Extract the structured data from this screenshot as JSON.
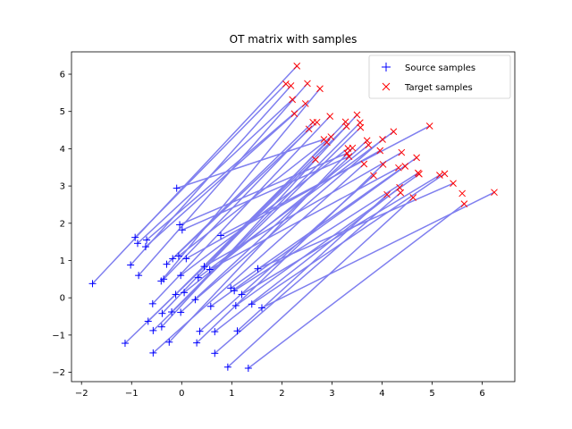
{
  "chart_data": {
    "type": "scatter",
    "title": "OT matrix with samples",
    "xlabel": "",
    "ylabel": "",
    "xlim": [
      -2.2,
      6.65
    ],
    "ylim": [
      -2.25,
      6.6
    ],
    "xticks": [
      -2,
      -1,
      0,
      1,
      2,
      3,
      4,
      5,
      6
    ],
    "yticks": [
      -2,
      -1,
      0,
      1,
      2,
      3,
      4,
      5,
      6
    ],
    "grid": false,
    "legend_position": "top-right",
    "colors": {
      "source": "#0000ff",
      "target": "#ff0000",
      "lines": "#7f7fef"
    },
    "series": [
      {
        "name": "Source samples",
        "marker": "+",
        "points": [
          [
            -1.78,
            0.38
          ],
          [
            -1.13,
            -1.22
          ],
          [
            -1.02,
            0.88
          ],
          [
            -0.93,
            1.62
          ],
          [
            -0.88,
            1.46
          ],
          [
            -0.86,
            0.6
          ],
          [
            -0.72,
            1.37
          ],
          [
            -0.7,
            1.55
          ],
          [
            -0.67,
            -0.63
          ],
          [
            -0.58,
            -0.16
          ],
          [
            -0.57,
            -0.88
          ],
          [
            -0.57,
            -1.48
          ],
          [
            -0.41,
            0.45
          ],
          [
            -0.4,
            -0.78
          ],
          [
            -0.39,
            -0.42
          ],
          [
            -0.36,
            0.5
          ],
          [
            -0.3,
            0.9
          ],
          [
            -0.25,
            -1.19
          ],
          [
            -0.2,
            -0.38
          ],
          [
            -0.18,
            1.05
          ],
          [
            -0.12,
            0.09
          ],
          [
            -0.1,
            2.94
          ],
          [
            -0.06,
            1.12
          ],
          [
            -0.04,
            1.96
          ],
          [
            -0.02,
            0.6
          ],
          [
            -0.02,
            -0.39
          ],
          [
            0.01,
            1.82
          ],
          [
            0.05,
            0.14
          ],
          [
            0.09,
            1.05
          ],
          [
            0.27,
            -0.05
          ],
          [
            0.3,
            -1.21
          ],
          [
            0.33,
            0.54
          ],
          [
            0.36,
            -0.9
          ],
          [
            0.45,
            0.84
          ],
          [
            0.56,
            0.76
          ],
          [
            0.58,
            -0.23
          ],
          [
            0.66,
            -0.91
          ],
          [
            0.66,
            -1.49
          ],
          [
            0.78,
            1.67
          ],
          [
            0.92,
            -1.86
          ],
          [
            0.98,
            0.26
          ],
          [
            1.05,
            0.19
          ],
          [
            1.08,
            -0.21
          ],
          [
            1.11,
            -0.89
          ],
          [
            1.2,
            0.09
          ],
          [
            1.33,
            -1.89
          ],
          [
            1.4,
            -0.17
          ],
          [
            1.52,
            0.78
          ],
          [
            1.6,
            -0.27
          ]
        ]
      },
      {
        "name": "Target samples",
        "marker": "x",
        "points": [
          [
            2.08,
            5.74
          ],
          [
            2.18,
            5.69
          ],
          [
            2.21,
            5.32
          ],
          [
            2.25,
            4.94
          ],
          [
            2.3,
            6.22
          ],
          [
            2.47,
            5.21
          ],
          [
            2.51,
            5.75
          ],
          [
            2.54,
            4.53
          ],
          [
            2.62,
            4.71
          ],
          [
            2.67,
            3.71
          ],
          [
            2.7,
            4.71
          ],
          [
            2.76,
            5.61
          ],
          [
            2.84,
            4.25
          ],
          [
            2.9,
            4.17
          ],
          [
            2.96,
            4.87
          ],
          [
            2.98,
            4.32
          ],
          [
            3.27,
            4.72
          ],
          [
            3.29,
            4.6
          ],
          [
            3.3,
            3.88
          ],
          [
            3.32,
            4.01
          ],
          [
            3.34,
            3.79
          ],
          [
            3.41,
            4.02
          ],
          [
            3.5,
            4.91
          ],
          [
            3.56,
            4.7
          ],
          [
            3.57,
            4.57
          ],
          [
            3.64,
            3.59
          ],
          [
            3.7,
            4.22
          ],
          [
            3.73,
            4.1
          ],
          [
            3.83,
            3.28
          ],
          [
            3.96,
            3.95
          ],
          [
            4.01,
            4.25
          ],
          [
            4.02,
            3.58
          ],
          [
            4.1,
            2.77
          ],
          [
            4.23,
            4.46
          ],
          [
            4.33,
            3.49
          ],
          [
            4.35,
            2.96
          ],
          [
            4.37,
            2.82
          ],
          [
            4.39,
            3.9
          ],
          [
            4.46,
            3.53
          ],
          [
            4.62,
            2.69
          ],
          [
            4.69,
            3.76
          ],
          [
            4.72,
            3.35
          ],
          [
            4.74,
            3.32
          ],
          [
            4.95,
            4.61
          ],
          [
            5.15,
            3.29
          ],
          [
            5.25,
            3.33
          ],
          [
            5.42,
            3.07
          ],
          [
            5.6,
            2.8
          ],
          [
            5.64,
            2.52
          ],
          [
            6.24,
            2.83
          ]
        ]
      }
    ],
    "matches": [
      [
        -1.78,
        0.38,
        2.3,
        6.22
      ],
      [
        -1.13,
        -1.22,
        2.67,
        3.71
      ],
      [
        -1.02,
        0.88,
        2.18,
        5.69
      ],
      [
        -0.93,
        1.62,
        2.08,
        5.74
      ],
      [
        -0.88,
        1.46,
        2.21,
        5.32
      ],
      [
        -0.86,
        0.6,
        2.51,
        5.75
      ],
      [
        -0.72,
        1.37,
        2.25,
        4.94
      ],
      [
        -0.7,
        1.55,
        2.47,
        5.21
      ],
      [
        -0.67,
        -0.63,
        3.29,
        4.6
      ],
      [
        -0.58,
        -0.16,
        2.96,
        4.87
      ],
      [
        -0.57,
        -0.88,
        3.57,
        4.57
      ],
      [
        -0.57,
        -1.48,
        3.64,
        3.59
      ],
      [
        -0.41,
        0.45,
        2.76,
        5.61
      ],
      [
        -0.4,
        -0.78,
        3.5,
        4.91
      ],
      [
        -0.39,
        -0.42,
        3.27,
        4.72
      ],
      [
        -0.36,
        0.5,
        2.54,
        4.53
      ],
      [
        -0.3,
        0.9,
        2.62,
        4.71
      ],
      [
        -0.25,
        -1.19,
        3.41,
        4.02
      ],
      [
        -0.2,
        -0.38,
        3.56,
        4.7
      ],
      [
        -0.18,
        1.05,
        2.7,
        4.71
      ],
      [
        -0.12,
        0.09,
        2.9,
        4.17
      ],
      [
        -0.1,
        2.94,
        2.84,
        4.25
      ],
      [
        -0.06,
        1.12,
        2.98,
        4.32
      ],
      [
        -0.04,
        1.96,
        3.3,
        3.88
      ],
      [
        -0.02,
        0.6,
        3.32,
        4.01
      ],
      [
        -0.02,
        -0.39,
        3.7,
        4.22
      ],
      [
        0.01,
        1.82,
        3.34,
        3.79
      ],
      [
        0.05,
        0.14,
        3.73,
        4.1
      ],
      [
        0.09,
        1.05,
        3.96,
        3.95
      ],
      [
        0.27,
        -0.05,
        4.01,
        4.25
      ],
      [
        0.3,
        -1.21,
        4.02,
        3.58
      ],
      [
        0.33,
        0.54,
        4.23,
        4.46
      ],
      [
        0.36,
        -0.9,
        3.83,
        3.28
      ],
      [
        0.45,
        0.84,
        4.39,
        3.9
      ],
      [
        0.56,
        0.76,
        4.33,
        3.49
      ],
      [
        0.58,
        -0.23,
        4.46,
        3.53
      ],
      [
        0.66,
        -0.91,
        4.35,
        2.96
      ],
      [
        0.66,
        -1.49,
        4.37,
        2.82
      ],
      [
        0.78,
        1.67,
        4.95,
        4.61
      ],
      [
        0.92,
        -1.86,
        4.62,
        2.69
      ],
      [
        0.98,
        0.26,
        4.69,
        3.76
      ],
      [
        1.05,
        0.19,
        4.72,
        3.35
      ],
      [
        1.08,
        -0.21,
        4.74,
        3.32
      ],
      [
        1.11,
        -0.89,
        4.1,
        2.77
      ],
      [
        1.2,
        0.09,
        5.15,
        3.29
      ],
      [
        1.33,
        -1.89,
        5.64,
        2.52
      ],
      [
        1.4,
        -0.17,
        5.25,
        3.33
      ],
      [
        1.52,
        0.78,
        5.42,
        3.07
      ],
      [
        1.6,
        -0.27,
        6.24,
        2.83
      ]
    ]
  }
}
